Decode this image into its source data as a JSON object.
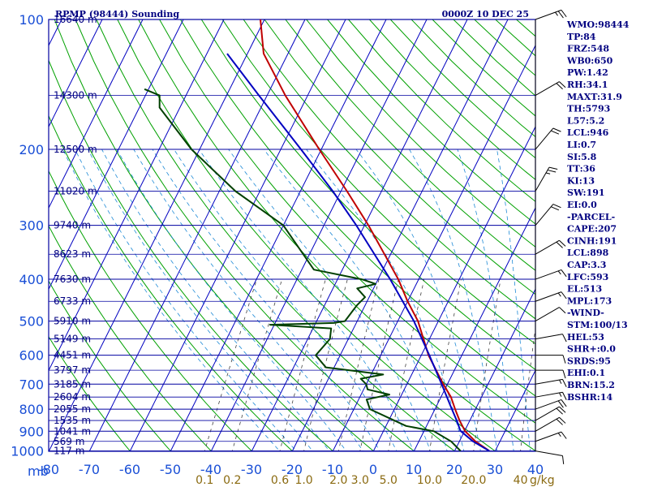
{
  "header": {
    "station": "RPMP (98444) Sounding",
    "datetime": "0000Z 10 DEC 25"
  },
  "colors": {
    "isobar": "#0000a0",
    "isotherm": "#0000c0",
    "dry_adiabat": "#00a000",
    "moist_adiabat": "#1e8ad6",
    "mixing_ratio": "#404040",
    "temperature": "#c00000",
    "dewpoint": "#004000",
    "parcel": "#0000c0",
    "wind_barb": "#000000",
    "label": "#000080"
  },
  "indices": [
    "WMO:98444",
    "TP:84",
    "FRZ:548",
    "WB0:650",
    "PW:1.42",
    "RH:34.1",
    "MAXT:31.9",
    "TH:5793",
    "L57:5.2",
    "LCL:946",
    "LI:0.7",
    "SI:5.8",
    "TT:36",
    "KI:13",
    "SW:191",
    "EI:0.0",
    "-PARCEL-",
    "CAPE:207",
    "CINH:191",
    "LCL:898",
    "CAP:3.3",
    "LFC:593",
    "EL:513",
    "MPL:173",
    "-WIND-",
    "STM:100/13",
    "HEL:53",
    "SHR+:0.0",
    "SRDS:95",
    "EHI:0.1",
    "BRN:15.2",
    "BSHR:14"
  ],
  "chart_data": {
    "type": "skew-t log-p sounding",
    "title": "RPMP (98444) Sounding",
    "valid_time": "0000Z 10 DEC 25",
    "pressure_axis": {
      "unit_label": "mb",
      "range_mb": [
        1000,
        100
      ],
      "ticks": [
        100,
        200,
        300,
        400,
        500,
        600,
        700,
        800,
        900,
        1000
      ]
    },
    "temperature_axis": {
      "unit": "C",
      "range": [
        -80,
        40
      ],
      "ticks": [
        -80,
        -70,
        -60,
        -50,
        -40,
        -30,
        -20,
        -10,
        0,
        10,
        20,
        30,
        40
      ]
    },
    "height_labels": [
      {
        "p": 100,
        "label": "16640 m"
      },
      {
        "p": 150,
        "label": "14300 m"
      },
      {
        "p": 200,
        "label": "12500 m"
      },
      {
        "p": 250,
        "label": "11020 m"
      },
      {
        "p": 300,
        "label": "9740 m"
      },
      {
        "p": 350,
        "label": "8623 m"
      },
      {
        "p": 400,
        "label": "7630 m"
      },
      {
        "p": 450,
        "label": "6733 m"
      },
      {
        "p": 500,
        "label": "5910 m"
      },
      {
        "p": 550,
        "label": "5149 m"
      },
      {
        "p": 600,
        "label": "4451 m"
      },
      {
        "p": 650,
        "label": "3797 m"
      },
      {
        "p": 700,
        "label": "3185 m"
      },
      {
        "p": 750,
        "label": "2604 m"
      },
      {
        "p": 800,
        "label": "2055 m"
      },
      {
        "p": 850,
        "label": "1535 m"
      },
      {
        "p": 900,
        "label": "1041 m"
      },
      {
        "p": 950,
        "label": "569 m"
      },
      {
        "p": 1000,
        "label": "117 m"
      }
    ],
    "mixing_ratio_labels": [
      {
        "w": 0.1,
        "label": "0.1"
      },
      {
        "w": 0.2,
        "label": "0.2"
      },
      {
        "w": 0.6,
        "label": "0.6"
      },
      {
        "w": 1.0,
        "label": "1.0"
      },
      {
        "w": 2.0,
        "label": "2.0"
      },
      {
        "w": 3.0,
        "label": "3.0"
      },
      {
        "w": 5.0,
        "label": "5.0"
      },
      {
        "w": 10.0,
        "label": "10.0"
      },
      {
        "w": 20.0,
        "label": "20.0"
      },
      {
        "w": 40.0,
        "label": "40"
      }
    ],
    "mixing_ratio_unit": "g/kg",
    "series": [
      {
        "name": "Temperature",
        "points": [
          {
            "p": 1000,
            "t": 28.6
          },
          {
            "p": 950,
            "t": 24.0
          },
          {
            "p": 900,
            "t": 20.2
          },
          {
            "p": 850,
            "t": 17.5
          },
          {
            "p": 800,
            "t": 15.0
          },
          {
            "p": 750,
            "t": 12.5
          },
          {
            "p": 700,
            "t": 9.0
          },
          {
            "p": 600,
            "t": 1.8
          },
          {
            "p": 500,
            "t": -5.0
          },
          {
            "p": 450,
            "t": -10.0
          },
          {
            "p": 400,
            "t": -15.0
          },
          {
            "p": 350,
            "t": -21.5
          },
          {
            "p": 300,
            "t": -29.0
          },
          {
            "p": 250,
            "t": -38.5
          },
          {
            "p": 200,
            "t": -50.5
          },
          {
            "p": 150,
            "t": -65.5
          },
          {
            "p": 120,
            "t": -76.0
          },
          {
            "p": 100,
            "t": -81.0
          }
        ]
      },
      {
        "name": "Dewpoint",
        "points": [
          {
            "p": 1000,
            "t": 21.5
          },
          {
            "p": 950,
            "t": 18.0
          },
          {
            "p": 900,
            "t": 12.5
          },
          {
            "p": 875,
            "t": 5.0
          },
          {
            "p": 800,
            "t": -6.0
          },
          {
            "p": 760,
            "t": -8.0
          },
          {
            "p": 740,
            "t": -3.0
          },
          {
            "p": 720,
            "t": -9.0
          },
          {
            "p": 700,
            "t": -10.0
          },
          {
            "p": 680,
            "t": -12.0
          },
          {
            "p": 665,
            "t": -7.0
          },
          {
            "p": 640,
            "t": -22.0
          },
          {
            "p": 600,
            "t": -26.0
          },
          {
            "p": 550,
            "t": -24.5
          },
          {
            "p": 520,
            "t": -25.5
          },
          {
            "p": 510,
            "t": -41.0
          },
          {
            "p": 505,
            "t": -25.5
          },
          {
            "p": 500,
            "t": -23.0
          },
          {
            "p": 460,
            "t": -22.0
          },
          {
            "p": 440,
            "t": -21.0
          },
          {
            "p": 420,
            "t": -24.0
          },
          {
            "p": 410,
            "t": -20.0
          },
          {
            "p": 400,
            "t": -24.0
          },
          {
            "p": 380,
            "t": -37.0
          },
          {
            "p": 300,
            "t": -50.0
          },
          {
            "p": 250,
            "t": -66.0
          },
          {
            "p": 200,
            "t": -82.0
          },
          {
            "p": 160,
            "t": -95.0
          },
          {
            "p": 150,
            "t": -96.5
          },
          {
            "p": 145,
            "t": -101.0
          }
        ]
      },
      {
        "name": "Parcel",
        "points": [
          {
            "p": 1000,
            "t": 28.6
          },
          {
            "p": 950,
            "t": 23.4
          },
          {
            "p": 898,
            "t": 19.0
          },
          {
            "p": 850,
            "t": 16.8
          },
          {
            "p": 800,
            "t": 14.2
          },
          {
            "p": 700,
            "t": 8.6
          },
          {
            "p": 600,
            "t": 2.0
          },
          {
            "p": 500,
            "t": -6.0
          },
          {
            "p": 400,
            "t": -17.0
          },
          {
            "p": 300,
            "t": -32.0
          },
          {
            "p": 250,
            "t": -42.0
          },
          {
            "p": 200,
            "t": -55.0
          },
          {
            "p": 150,
            "t": -72.0
          },
          {
            "p": 120,
            "t": -85.0
          }
        ]
      }
    ],
    "wind": [
      {
        "p": 1000,
        "dir": 100,
        "kt": 10
      },
      {
        "p": 950,
        "dir": 70,
        "kt": 15
      },
      {
        "p": 900,
        "dir": 60,
        "kt": 20
      },
      {
        "p": 850,
        "dir": 60,
        "kt": 20
      },
      {
        "p": 800,
        "dir": 70,
        "kt": 20
      },
      {
        "p": 750,
        "dir": 80,
        "kt": 15
      },
      {
        "p": 700,
        "dir": 80,
        "kt": 15
      },
      {
        "p": 650,
        "dir": 90,
        "kt": 10
      },
      {
        "p": 600,
        "dir": 90,
        "kt": 10
      },
      {
        "p": 550,
        "dir": 80,
        "kt": 10
      },
      {
        "p": 500,
        "dir": 60,
        "kt": 10
      },
      {
        "p": 450,
        "dir": 70,
        "kt": 15
      },
      {
        "p": 400,
        "dir": 70,
        "kt": 15
      },
      {
        "p": 350,
        "dir": 60,
        "kt": 20
      },
      {
        "p": 300,
        "dir": 40,
        "kt": 20
      },
      {
        "p": 250,
        "dir": 30,
        "kt": 25
      },
      {
        "p": 200,
        "dir": 40,
        "kt": 20
      },
      {
        "p": 150,
        "dir": 60,
        "kt": 20
      },
      {
        "p": 100,
        "dir": 70,
        "kt": 25
      }
    ]
  }
}
